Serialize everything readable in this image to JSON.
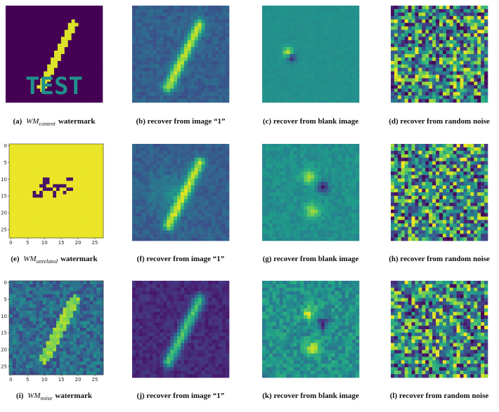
{
  "panels": [
    {
      "caption": {
        "label": "(a)",
        "math": "WM",
        "sub": "content",
        "text": "watermark"
      },
      "image_text": "TEST"
    },
    {
      "caption": {
        "label": "(b)",
        "text": "recover from image “1”"
      }
    },
    {
      "caption": {
        "label": "(c)",
        "text": "recover from blank image"
      }
    },
    {
      "caption": {
        "label": "(d)",
        "text": "recover from random noise"
      }
    },
    {
      "caption": {
        "label": "(e)",
        "math": "WM",
        "sub": "unrelated",
        "text": "watermark"
      },
      "xticks": [
        0,
        5,
        10,
        15,
        20,
        25
      ],
      "yticks": [
        0,
        5,
        10,
        15,
        20,
        25
      ]
    },
    {
      "caption": {
        "label": "(f)",
        "text": "recover from image “1”"
      }
    },
    {
      "caption": {
        "label": "(g)",
        "text": "recover from blank image"
      }
    },
    {
      "caption": {
        "label": "(h)",
        "text": "recover from random noise"
      }
    },
    {
      "caption": {
        "label": "(i)",
        "math": "WM",
        "sub": "noise",
        "text": "watermark"
      },
      "xticks": [
        0,
        5,
        10,
        15,
        20,
        25
      ],
      "yticks": [
        0,
        5,
        10,
        15,
        20,
        25
      ]
    },
    {
      "caption": {
        "label": "(j)",
        "text": "recover from image “1”"
      }
    },
    {
      "caption": {
        "label": "(k)",
        "text": "recover from blank image"
      }
    },
    {
      "caption": {
        "label": "(l)",
        "text": "recover from random noise"
      }
    }
  ]
}
